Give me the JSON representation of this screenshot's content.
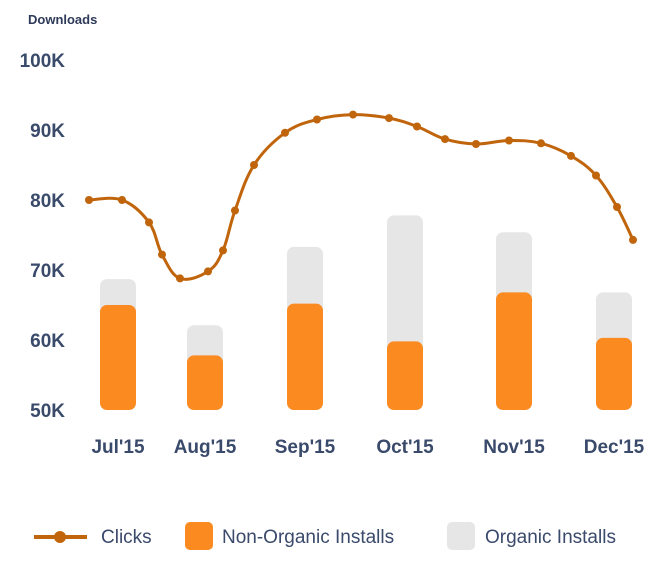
{
  "chart_data": {
    "type": "bar",
    "ylabel": "Downloads",
    "ylim": [
      50000,
      100000
    ],
    "yticks": [
      "50K",
      "60K",
      "70K",
      "80K",
      "90K",
      "100K"
    ],
    "ytick_values": [
      50000,
      60000,
      70000,
      80000,
      90000,
      100000
    ],
    "categories": [
      "Jul'15",
      "Aug'15",
      "Sep'15",
      "Oct'15",
      "Nov'15",
      "Dec'15"
    ],
    "series": [
      {
        "name": "Non-Organic Installs",
        "type": "bar",
        "color": "#fb8a21",
        "values": [
          65000,
          57800,
          65200,
          59800,
          66800,
          60300
        ]
      },
      {
        "name": "Organic Installs",
        "type": "bar",
        "color": "#e6e6e6",
        "values": [
          68700,
          62100,
          73300,
          77800,
          75400,
          66800
        ]
      },
      {
        "name": "Clicks",
        "type": "line",
        "color": "#c0650c",
        "values": [
          80000,
          68800,
          91500,
          90500,
          88500,
          74300
        ]
      }
    ],
    "clicks_points": [
      {
        "x": "Jul'15",
        "y": 80000
      },
      {
        "x": "Jul'15",
        "y": 80000
      },
      {
        "x": "Jul'15",
        "y": 76800
      },
      {
        "x": "Jul'15",
        "y": 72200
      },
      {
        "x": "Aug'15",
        "y": 68800
      },
      {
        "x": "Aug'15",
        "y": 69800
      },
      {
        "x": "Aug'15",
        "y": 72800
      },
      {
        "x": "Aug'15",
        "y": 78500
      },
      {
        "x": "Aug'15",
        "y": 85000
      },
      {
        "x": "Sep'15",
        "y": 89600
      },
      {
        "x": "Sep'15",
        "y": 91500
      },
      {
        "x": "Sep'15",
        "y": 92200
      },
      {
        "x": "Oct'15",
        "y": 91700
      },
      {
        "x": "Oct'15",
        "y": 90500
      },
      {
        "x": "Oct'15",
        "y": 88700
      },
      {
        "x": "Nov'15",
        "y": 88000
      },
      {
        "x": "Nov'15",
        "y": 88500
      },
      {
        "x": "Nov'15",
        "y": 88100
      },
      {
        "x": "Dec'15",
        "y": 86300
      },
      {
        "x": "Dec'15",
        "y": 83500
      },
      {
        "x": "Dec'15",
        "y": 79000
      },
      {
        "x": "Dec'15",
        "y": 74300
      }
    ],
    "legend_position": "bottom",
    "grid": false
  }
}
